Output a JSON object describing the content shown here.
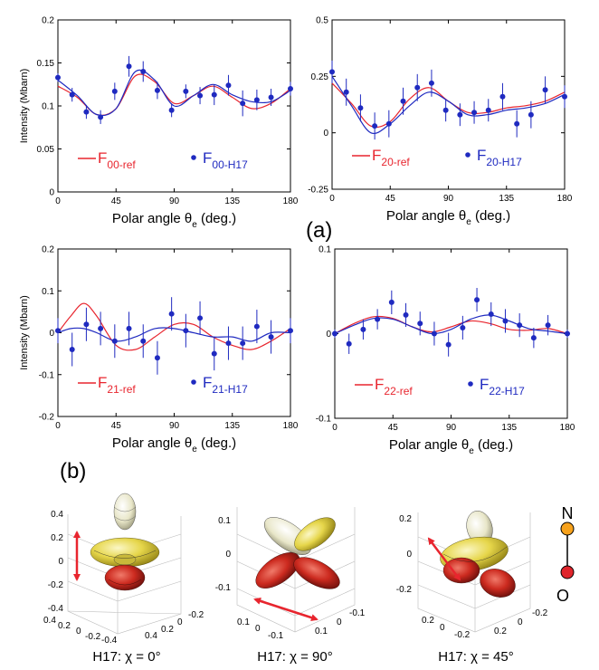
{
  "colors": {
    "ref": "#e8252e",
    "h17": "#1f2ac0",
    "errorbar": "#1f2ac0",
    "arrow": "#e8252e",
    "N": "#f7a21c",
    "O": "#e0252c"
  },
  "panel_labels": {
    "a": "(a)",
    "b": "(b)"
  },
  "chart_data": [
    {
      "type": "line",
      "id": "F00",
      "xlabel": "Polar angle θe (deg.)",
      "ylabel": "Intensity (Mbarn)",
      "xlim": [
        0,
        180
      ],
      "ylim": [
        0,
        0.2
      ],
      "xticks": [
        0,
        45,
        90,
        135,
        180
      ],
      "yticks": [
        0,
        0.05,
        0.1,
        0.15,
        0.2
      ],
      "ytick_labels": [
        "0",
        "0.05",
        "0.1",
        "0.15",
        "0.2"
      ],
      "legend": {
        "ref_base": "F",
        "ref_sub": "00-ref",
        "h17_base": "F",
        "h17_sub": "00-H17"
      },
      "series": [
        {
          "name": "F00-ref",
          "kind": "line",
          "x": [
            0,
            15,
            30,
            45,
            60,
            75,
            90,
            105,
            120,
            135,
            150,
            165,
            180
          ],
          "y": [
            0.123,
            0.11,
            0.09,
            0.097,
            0.135,
            0.128,
            0.103,
            0.112,
            0.123,
            0.11,
            0.097,
            0.103,
            0.12
          ]
        },
        {
          "name": "F00-H17",
          "kind": "line",
          "x": [
            0,
            15,
            30,
            45,
            60,
            75,
            90,
            105,
            120,
            135,
            150,
            165,
            180
          ],
          "y": [
            0.13,
            0.112,
            0.09,
            0.097,
            0.14,
            0.13,
            0.1,
            0.112,
            0.125,
            0.113,
            0.105,
            0.105,
            0.118
          ]
        },
        {
          "name": "F00-H17 data",
          "kind": "points",
          "x": [
            0,
            11,
            22,
            33,
            44,
            55,
            66,
            77,
            88,
            99,
            110,
            121,
            132,
            143,
            154,
            165,
            180
          ],
          "y": [
            0.133,
            0.113,
            0.093,
            0.087,
            0.117,
            0.146,
            0.14,
            0.118,
            0.095,
            0.117,
            0.112,
            0.113,
            0.124,
            0.103,
            0.107,
            0.11,
            0.12
          ],
          "err": [
            0.005,
            0.008,
            0.008,
            0.008,
            0.01,
            0.012,
            0.012,
            0.01,
            0.008,
            0.008,
            0.01,
            0.012,
            0.012,
            0.015,
            0.012,
            0.01,
            0.008
          ]
        }
      ]
    },
    {
      "type": "line",
      "id": "F20",
      "xlabel": "Polar angle θe (deg.)",
      "ylabel": "",
      "xlim": [
        0,
        180
      ],
      "ylim": [
        -0.25,
        0.5
      ],
      "xticks": [
        0,
        45,
        90,
        135,
        180
      ],
      "yticks": [
        -0.25,
        0,
        0.25,
        0.5
      ],
      "ytick_labels": [
        "-0.25",
        "0",
        "0.25",
        "0.5"
      ],
      "legend": {
        "ref_base": "F",
        "ref_sub": "20-ref",
        "h17_base": "F",
        "h17_sub": "20-H17"
      },
      "series": [
        {
          "name": "F20-ref",
          "kind": "line",
          "x": [
            0,
            15,
            30,
            45,
            60,
            75,
            90,
            105,
            120,
            135,
            150,
            165,
            180
          ],
          "y": [
            0.22,
            0.13,
            0.03,
            0.05,
            0.15,
            0.2,
            0.14,
            0.09,
            0.09,
            0.11,
            0.12,
            0.14,
            0.18
          ]
        },
        {
          "name": "F20-H17",
          "kind": "line",
          "x": [
            0,
            15,
            30,
            45,
            60,
            75,
            90,
            105,
            120,
            135,
            150,
            165,
            180
          ],
          "y": [
            0.25,
            0.12,
            0.0,
            0.04,
            0.12,
            0.18,
            0.14,
            0.08,
            0.08,
            0.1,
            0.11,
            0.13,
            0.17
          ]
        },
        {
          "name": "F20-H17 data",
          "kind": "points",
          "x": [
            0,
            11,
            22,
            33,
            44,
            55,
            66,
            77,
            88,
            99,
            110,
            121,
            132,
            143,
            154,
            165,
            180
          ],
          "y": [
            0.27,
            0.18,
            0.11,
            0.03,
            0.04,
            0.14,
            0.2,
            0.22,
            0.1,
            0.08,
            0.09,
            0.1,
            0.16,
            0.04,
            0.08,
            0.19,
            0.16
          ],
          "err": [
            0.05,
            0.06,
            0.06,
            0.06,
            0.06,
            0.06,
            0.06,
            0.06,
            0.05,
            0.05,
            0.05,
            0.05,
            0.06,
            0.06,
            0.06,
            0.06,
            0.05
          ]
        }
      ]
    },
    {
      "type": "line",
      "id": "F21",
      "xlabel": "Polar angle θe (deg.)",
      "ylabel": "Intensity (Mbarn)",
      "xlim": [
        0,
        180
      ],
      "ylim": [
        -0.2,
        0.2
      ],
      "xticks": [
        0,
        45,
        90,
        135,
        180
      ],
      "yticks": [
        -0.2,
        -0.1,
        0,
        0.1,
        0.2
      ],
      "ytick_labels": [
        "-0.2",
        "-0.1",
        "0",
        "0.1",
        "0.2"
      ],
      "legend": {
        "ref_base": "F",
        "ref_sub": "21-ref",
        "h17_base": "F",
        "h17_sub": "21-H17"
      },
      "series": [
        {
          "name": "F21-ref",
          "kind": "line",
          "x": [
            0,
            10,
            20,
            30,
            45,
            60,
            75,
            90,
            105,
            120,
            135,
            150,
            165,
            180
          ],
          "y": [
            0.0,
            0.04,
            0.07,
            0.04,
            -0.03,
            -0.04,
            -0.01,
            0.02,
            0.02,
            -0.01,
            -0.03,
            -0.04,
            -0.02,
            0.01
          ]
        },
        {
          "name": "F21-H17",
          "kind": "line",
          "x": [
            0,
            10,
            20,
            30,
            45,
            60,
            75,
            90,
            105,
            120,
            135,
            150,
            165,
            180
          ],
          "y": [
            0.0,
            0.01,
            0.01,
            0.0,
            -0.02,
            -0.01,
            0.01,
            0.01,
            0.0,
            -0.01,
            -0.01,
            -0.02,
            0.0,
            0.0
          ]
        },
        {
          "name": "F21-H17 data",
          "kind": "points",
          "x": [
            0,
            11,
            22,
            33,
            44,
            55,
            66,
            77,
            88,
            99,
            110,
            121,
            132,
            143,
            154,
            165,
            180
          ],
          "y": [
            0.005,
            -0.04,
            0.02,
            0.01,
            -0.02,
            0.01,
            -0.02,
            -0.06,
            0.045,
            0.005,
            0.035,
            -0.05,
            -0.025,
            -0.025,
            0.015,
            -0.01,
            0.005
          ],
          "err": [
            0.03,
            0.04,
            0.04,
            0.04,
            0.04,
            0.04,
            0.04,
            0.04,
            0.04,
            0.04,
            0.04,
            0.04,
            0.04,
            0.04,
            0.04,
            0.04,
            0.03
          ]
        }
      ]
    },
    {
      "type": "line",
      "id": "F22",
      "xlabel": "Polar angle θe (deg.)",
      "ylabel": "",
      "xlim": [
        0,
        180
      ],
      "ylim": [
        -0.1,
        0.1
      ],
      "xticks": [
        0,
        45,
        90,
        135,
        180
      ],
      "yticks": [
        -0.1,
        0,
        0.1
      ],
      "ytick_labels": [
        "-0.1",
        "0",
        "0.1"
      ],
      "legend": {
        "ref_base": "F",
        "ref_sub": "22-ref",
        "h17_base": "F",
        "h17_sub": "22-H17"
      },
      "series": [
        {
          "name": "F22-ref",
          "kind": "line",
          "x": [
            0,
            15,
            30,
            45,
            60,
            75,
            90,
            105,
            120,
            135,
            150,
            165,
            180
          ],
          "y": [
            0.0,
            0.012,
            0.02,
            0.018,
            0.008,
            0.002,
            0.008,
            0.015,
            0.012,
            0.005,
            0.004,
            0.006,
            0.0
          ]
        },
        {
          "name": "F22-H17",
          "kind": "line",
          "x": [
            0,
            15,
            30,
            45,
            60,
            75,
            90,
            105,
            120,
            135,
            150,
            165,
            180
          ],
          "y": [
            0.0,
            0.01,
            0.018,
            0.017,
            0.008,
            0.0,
            0.005,
            0.017,
            0.022,
            0.015,
            0.006,
            0.003,
            0.0
          ]
        },
        {
          "name": "F22-H17 data",
          "kind": "points",
          "x": [
            0,
            11,
            22,
            33,
            44,
            55,
            66,
            77,
            88,
            99,
            110,
            121,
            132,
            143,
            154,
            165,
            180
          ],
          "y": [
            0.0,
            -0.012,
            0.005,
            0.017,
            0.037,
            0.022,
            0.012,
            0.0,
            -0.013,
            0.007,
            0.04,
            0.023,
            0.015,
            0.01,
            -0.005,
            0.01,
            0.0
          ],
          "err": [
            0.005,
            0.012,
            0.012,
            0.012,
            0.014,
            0.014,
            0.014,
            0.014,
            0.014,
            0.014,
            0.014,
            0.014,
            0.014,
            0.014,
            0.012,
            0.012,
            0.005
          ]
        }
      ]
    }
  ],
  "orbitals": [
    {
      "caption": "H17: χ = 0°",
      "zticks": [
        "0.4",
        "0.2",
        "0",
        "-0.2",
        "-0.4"
      ],
      "xticks": [
        "0.4",
        "0.2",
        "0",
        "-0.2",
        "-0.4"
      ],
      "yticks": [
        "0.4",
        "0.2",
        "0",
        "-0.2"
      ]
    },
    {
      "caption": "H17: χ = 90°",
      "zticks": [
        "0.1",
        "0",
        "-0.1"
      ],
      "xticks": [
        "0.1",
        "0",
        "-0.1"
      ],
      "yticks": [
        "0.1",
        "0",
        "-0.1"
      ]
    },
    {
      "caption": "H17: χ = 45°",
      "zticks": [
        "0.2",
        "0",
        "-0.2"
      ],
      "xticks": [
        "0.2",
        "0",
        "-0.2"
      ],
      "yticks": [
        "0.2",
        "0",
        "-0.2"
      ]
    }
  ],
  "molecule": {
    "top": "N",
    "bottom": "O"
  }
}
